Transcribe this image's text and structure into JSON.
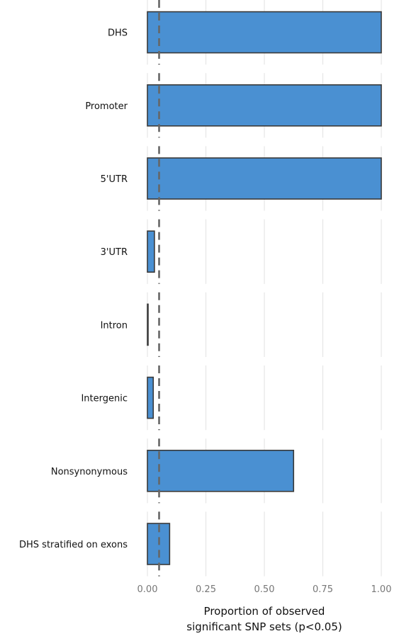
{
  "chart_data": {
    "type": "bar",
    "orientation": "horizontal",
    "title": "",
    "xlabel_lines": [
      "Proportion of  observed",
      "significant SNP sets (p<0.05)"
    ],
    "ylabel": "",
    "categories": [
      "DHS",
      "Promoter",
      "5'UTR",
      "3'UTR",
      "Intron",
      "Intergenic",
      "Nonsynonymous",
      "DHS stratified on  exons"
    ],
    "values": [
      1.0,
      1.0,
      1.0,
      0.03,
      0.0,
      0.025,
      0.625,
      0.095
    ],
    "xlim": [
      0,
      1
    ],
    "xticks": [
      0,
      0.25,
      0.5,
      0.75,
      1.0
    ],
    "xtick_labels": [
      "0.00",
      "0.25",
      "0.50",
      "0.75",
      "1.00"
    ],
    "reference_line": 0.05,
    "grid": "vertical",
    "legend": "none",
    "colors": {
      "bar_fill": "#4a90d2",
      "bar_stroke": "#3a3a3a",
      "reference_line": "#666666",
      "grid": "#e6e6e6"
    }
  }
}
